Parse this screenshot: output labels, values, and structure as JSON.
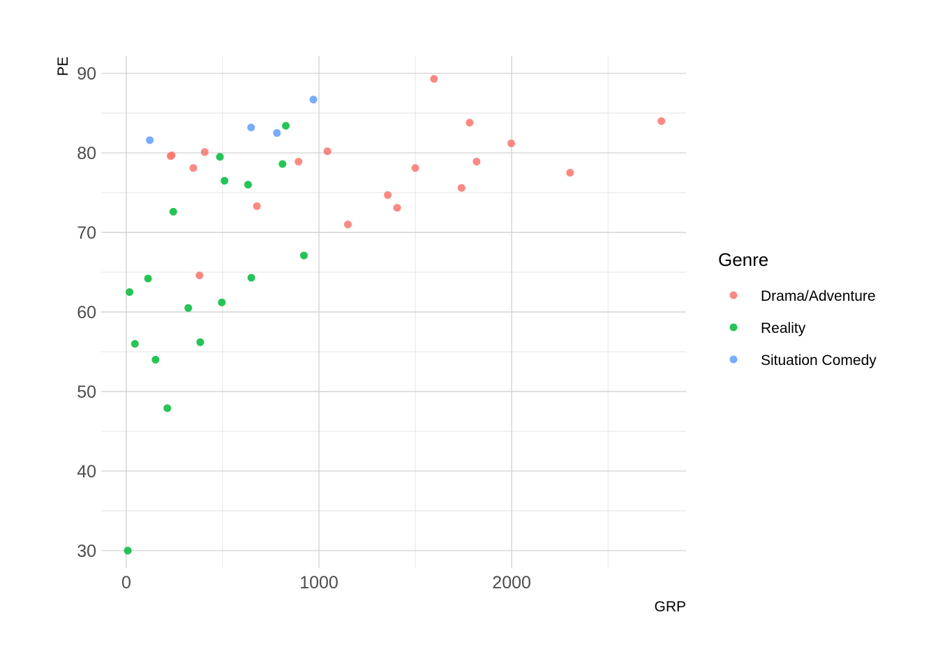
{
  "chart_data": {
    "type": "scatter",
    "title": "",
    "xlabel": "GRP",
    "ylabel": "PE",
    "xlim": [
      -130,
      2905
    ],
    "ylim": [
      27.8,
      92.2
    ],
    "x_ticks": [
      0,
      1000,
      2000
    ],
    "x_minor_ticks": [
      500,
      1500,
      2500
    ],
    "y_ticks": [
      30,
      40,
      50,
      60,
      70,
      80,
      90
    ],
    "y_minor_ticks": [
      35,
      45,
      55,
      65,
      75,
      85
    ],
    "grid": true,
    "legend": {
      "title": "Genre",
      "position": "right"
    },
    "series": [
      {
        "name": "Drama/Adventure",
        "color": "#F8766D",
        "points": [
          [
            230,
            79.6
          ],
          [
            236,
            79.7
          ],
          [
            348,
            78.1
          ],
          [
            380,
            64.6
          ],
          [
            407,
            80.1
          ],
          [
            678,
            73.3
          ],
          [
            894,
            78.9
          ],
          [
            1044,
            80.2
          ],
          [
            1150,
            71.0
          ],
          [
            1357,
            74.7
          ],
          [
            1406,
            73.1
          ],
          [
            1500,
            78.1
          ],
          [
            1597,
            89.3
          ],
          [
            1740,
            75.6
          ],
          [
            1782,
            83.8
          ],
          [
            1818,
            78.9
          ],
          [
            1998,
            81.2
          ],
          [
            2303,
            77.5
          ],
          [
            2777,
            84.0
          ]
        ]
      },
      {
        "name": "Reality",
        "color": "#00BA38",
        "points": [
          [
            8,
            30.0
          ],
          [
            17,
            62.5
          ],
          [
            45,
            56.0
          ],
          [
            113,
            64.2
          ],
          [
            152,
            54.0
          ],
          [
            213,
            47.9
          ],
          [
            244,
            72.6
          ],
          [
            322,
            60.5
          ],
          [
            384,
            56.2
          ],
          [
            486,
            79.5
          ],
          [
            496,
            61.2
          ],
          [
            510,
            76.5
          ],
          [
            632,
            76.0
          ],
          [
            649,
            64.3
          ],
          [
            811,
            78.6
          ],
          [
            828,
            83.4
          ],
          [
            922,
            67.1
          ]
        ]
      },
      {
        "name": "Situation Comedy",
        "color": "#619CFF",
        "points": [
          [
            122,
            81.6
          ],
          [
            648,
            83.2
          ],
          [
            782,
            82.5
          ],
          [
            971,
            86.7
          ]
        ]
      }
    ]
  }
}
